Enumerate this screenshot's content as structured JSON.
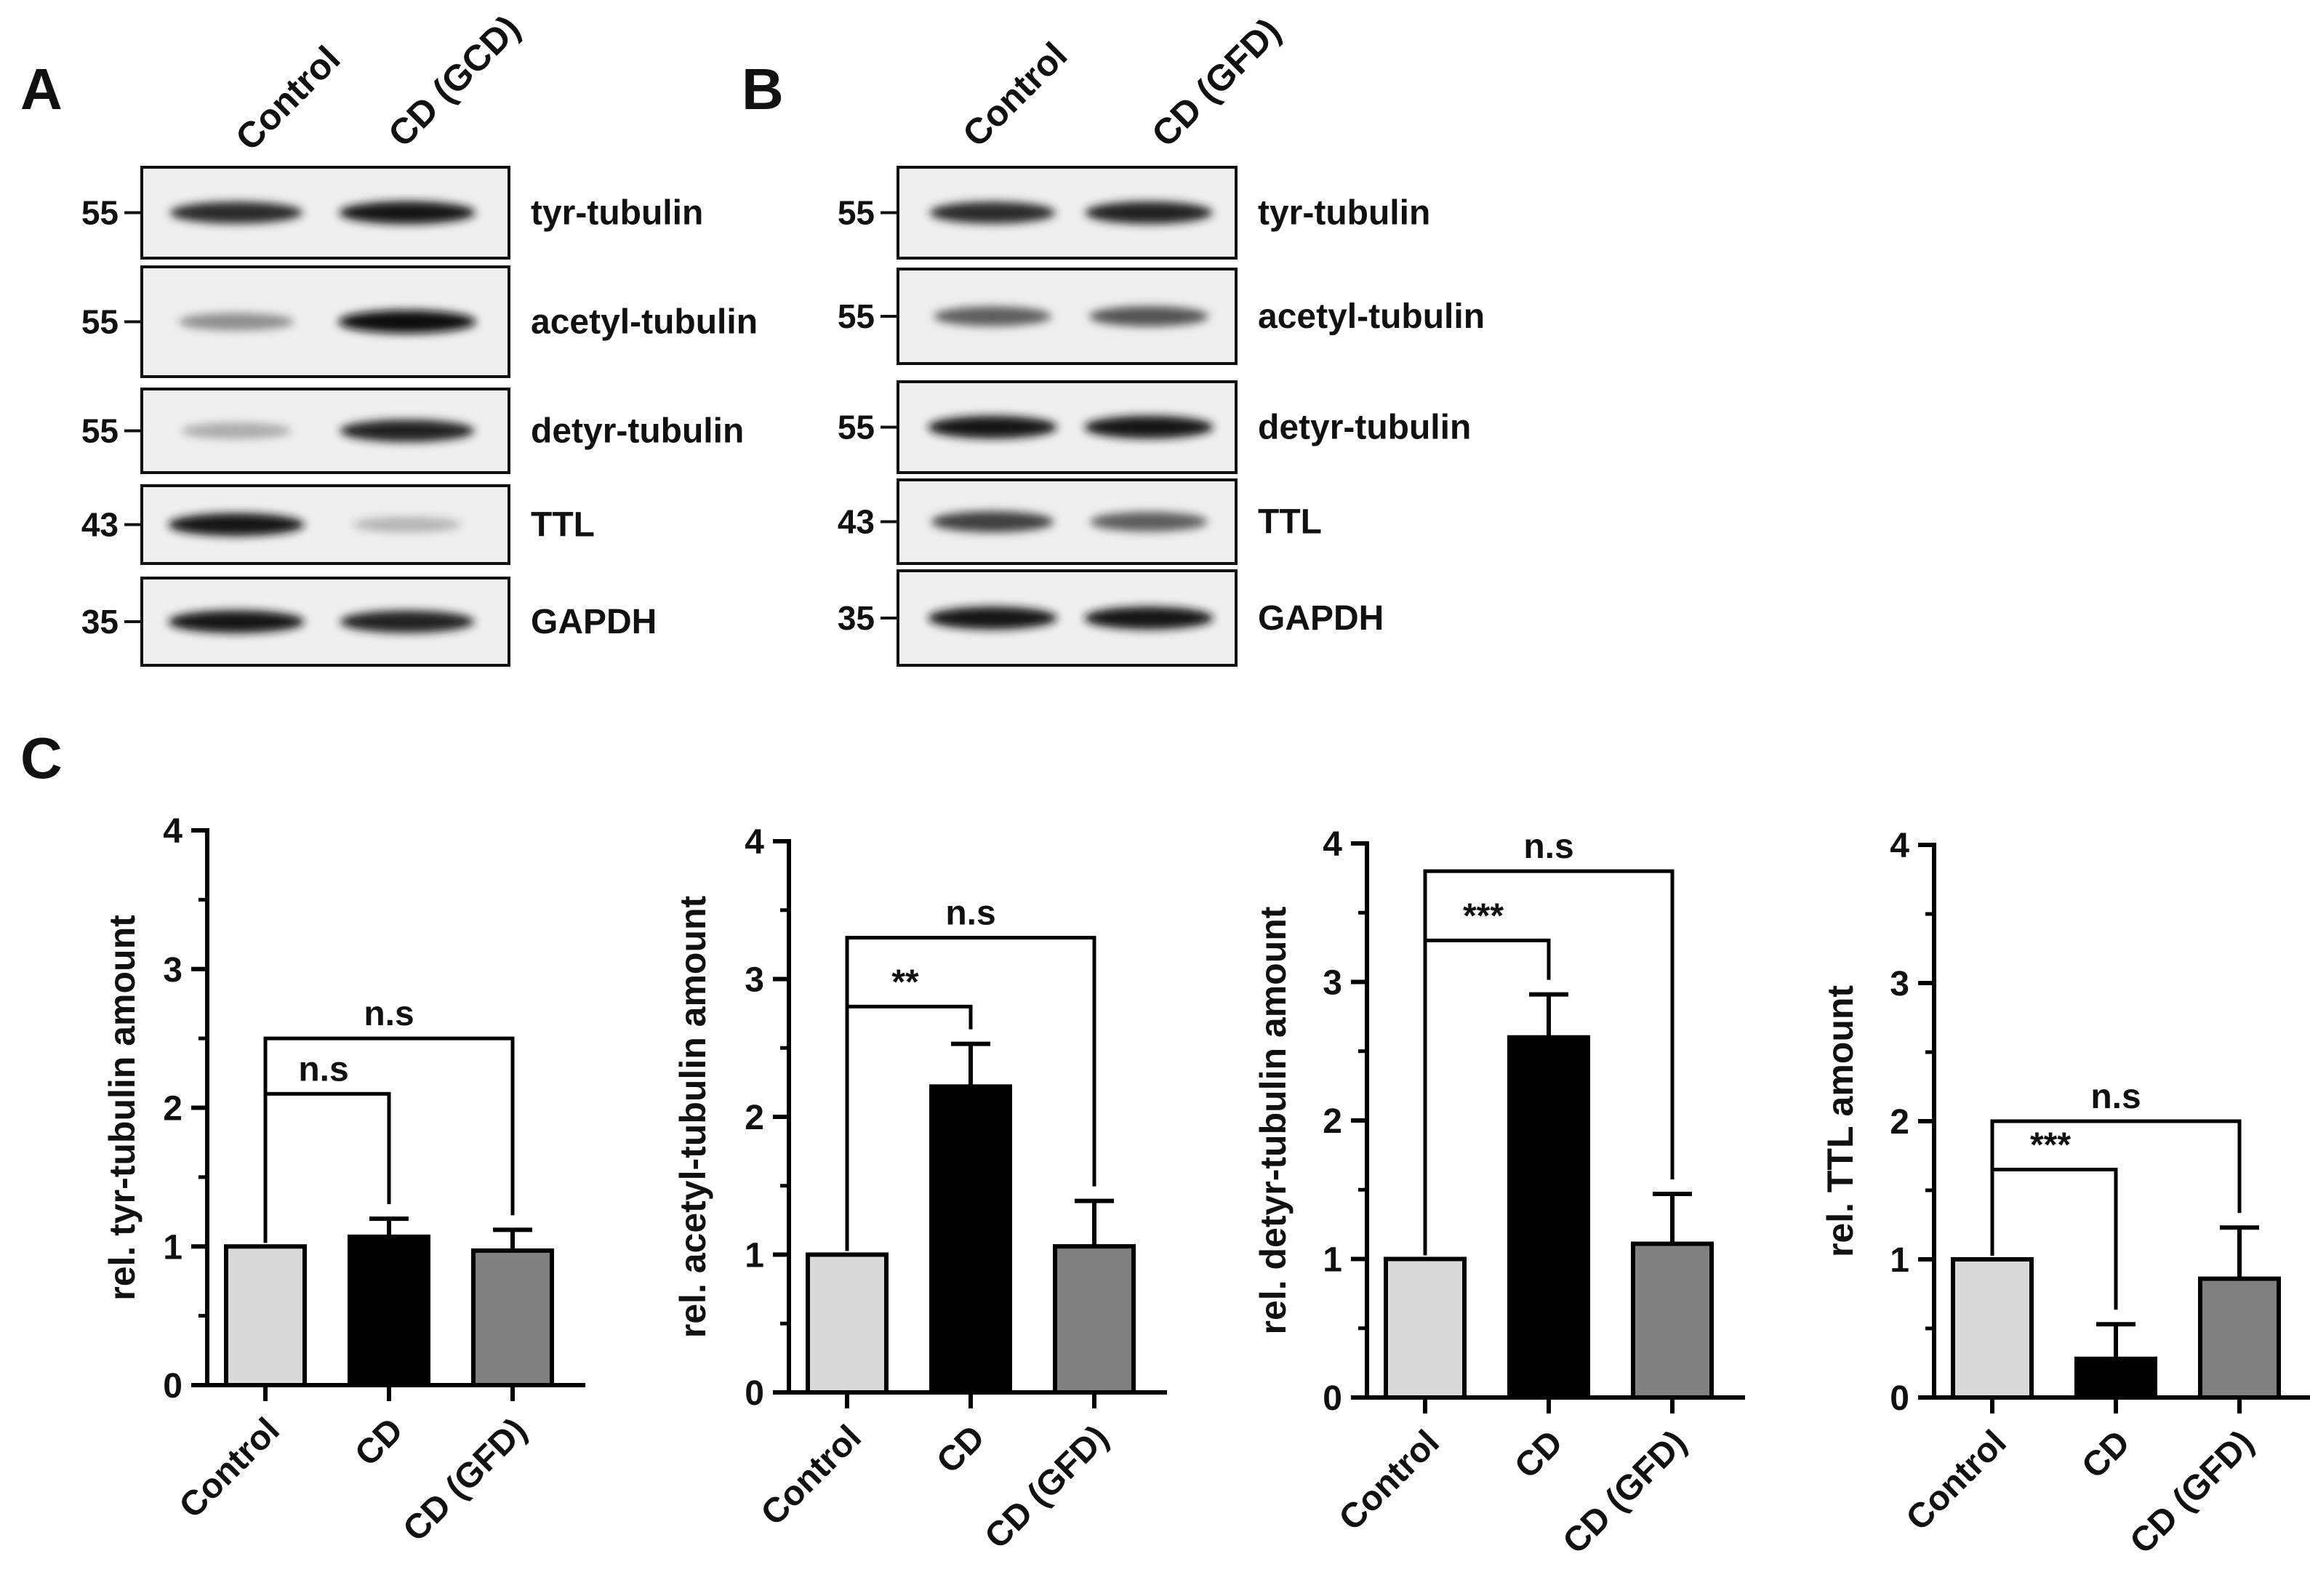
{
  "panel_labels": {
    "a": "A",
    "b": "B",
    "c": "C"
  },
  "blot_a": {
    "lanes": [
      "Control",
      "CD (GCD)"
    ],
    "rows": [
      {
        "mw": "55",
        "name": "tyr-tubulin",
        "intensity": [
          0.85,
          0.95
        ]
      },
      {
        "mw": "55",
        "name": "acetyl-tubulin",
        "intensity": [
          0.35,
          1.0
        ]
      },
      {
        "mw": "55",
        "name": "detyr-tubulin",
        "intensity": [
          0.2,
          0.9
        ]
      },
      {
        "mw": "43",
        "name": "TTL",
        "intensity": [
          0.95,
          0.15
        ]
      },
      {
        "mw": "35",
        "name": "GAPDH",
        "intensity": [
          0.95,
          0.9
        ]
      }
    ]
  },
  "blot_b": {
    "lanes": [
      "Control",
      "CD (GFD)"
    ],
    "rows": [
      {
        "mw": "55",
        "name": "tyr-tubulin",
        "intensity": [
          0.85,
          0.9
        ]
      },
      {
        "mw": "55",
        "name": "acetyl-tubulin",
        "intensity": [
          0.6,
          0.65
        ]
      },
      {
        "mw": "55",
        "name": "detyr-tubulin",
        "intensity": [
          0.95,
          0.95
        ]
      },
      {
        "mw": "43",
        "name": "TTL",
        "intensity": [
          0.75,
          0.6
        ]
      },
      {
        "mw": "35",
        "name": "GAPDH",
        "intensity": [
          0.95,
          0.95
        ]
      }
    ]
  },
  "colors": {
    "control": "#d9d9d9",
    "cd": "#000000",
    "gfd": "#808080",
    "axis": "#000000"
  },
  "chart_data": [
    {
      "type": "bar",
      "categories": [
        "Control",
        "CD",
        "CD (GFD)"
      ],
      "values": [
        1.0,
        1.07,
        0.97
      ],
      "errors": [
        0,
        0.13,
        0.15
      ],
      "ylabel": "rel. tyr-tubulin amount",
      "ylim": [
        0,
        4
      ],
      "yticks": [
        "0",
        "1",
        "2",
        "3",
        "4"
      ],
      "annotations": [
        {
          "from": "Control",
          "to": "CD",
          "label": "n.s",
          "level": 2.1
        },
        {
          "from": "Control",
          "to": "CD (GFD)",
          "label": "n.s",
          "level": 2.5
        }
      ]
    },
    {
      "type": "bar",
      "categories": [
        "Control",
        "CD",
        "CD (GFD)"
      ],
      "values": [
        1.0,
        2.22,
        1.06
      ],
      "errors": [
        0,
        0.31,
        0.33
      ],
      "ylabel": "rel. acetyl-tubulin amount",
      "ylim": [
        0,
        4
      ],
      "yticks": [
        "0",
        "1",
        "2",
        "3",
        "4"
      ],
      "annotations": [
        {
          "from": "Control",
          "to": "CD",
          "label": "**",
          "level": 2.8
        },
        {
          "from": "Control",
          "to": "CD (GFD)",
          "label": "n.s",
          "level": 3.3
        }
      ]
    },
    {
      "type": "bar",
      "categories": [
        "Control",
        "CD",
        "CD (GFD)"
      ],
      "values": [
        1.0,
        2.6,
        1.11
      ],
      "errors": [
        0,
        0.31,
        0.36
      ],
      "ylabel": "rel. detyr-tubulin amount",
      "ylim": [
        0,
        4
      ],
      "yticks": [
        "0",
        "1",
        "2",
        "3",
        "4"
      ],
      "annotations": [
        {
          "from": "Control",
          "to": "CD",
          "label": "***",
          "level": 3.3
        },
        {
          "from": "Control",
          "to": "CD (GFD)",
          "label": "n.s",
          "level": 3.8
        }
      ]
    },
    {
      "type": "bar",
      "categories": [
        "Control",
        "CD",
        "CD (GFD)"
      ],
      "values": [
        1.0,
        0.28,
        0.86
      ],
      "errors": [
        0,
        0.25,
        0.37
      ],
      "ylabel": "rel. TTL amount",
      "ylim": [
        0,
        4
      ],
      "yticks": [
        "0",
        "1",
        "2",
        "3",
        "4"
      ],
      "annotations": [
        {
          "from": "Control",
          "to": "CD",
          "label": "***",
          "level": 1.65
        },
        {
          "from": "Control",
          "to": "CD (GFD)",
          "label": "n.s",
          "level": 2.0
        }
      ]
    }
  ]
}
